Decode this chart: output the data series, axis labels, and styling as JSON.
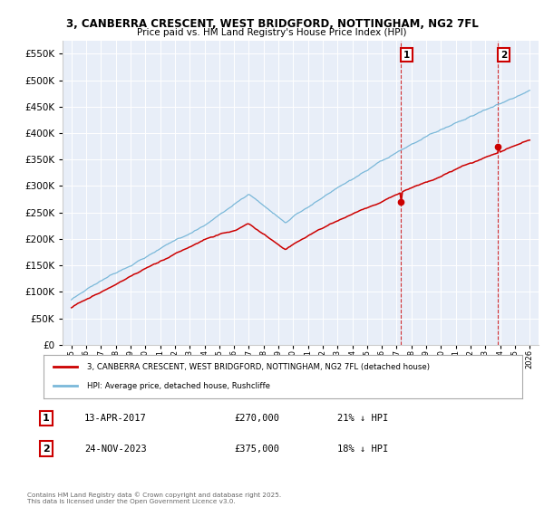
{
  "title1": "3, CANBERRA CRESCENT, WEST BRIDGFORD, NOTTINGHAM, NG2 7FL",
  "title2": "Price paid vs. HM Land Registry's House Price Index (HPI)",
  "ytick_vals": [
    0,
    50000,
    100000,
    150000,
    200000,
    250000,
    300000,
    350000,
    400000,
    450000,
    500000,
    550000
  ],
  "ylim": [
    0,
    575000
  ],
  "hpi_color": "#7ab8d9",
  "price_color": "#cc0000",
  "vline_color": "#cc0000",
  "background_color": "#e8eef8",
  "legend_entries": [
    "3, CANBERRA CRESCENT, WEST BRIDGFORD, NOTTINGHAM, NG2 7FL (detached house)",
    "HPI: Average price, detached house, Rushcliffe"
  ],
  "annotation1": {
    "label": "1",
    "date": "13-APR-2017",
    "price": "£270,000",
    "hpi_note": "21% ↓ HPI"
  },
  "annotation2": {
    "label": "2",
    "date": "24-NOV-2023",
    "price": "£375,000",
    "hpi_note": "18% ↓ HPI"
  },
  "footer": "Contains HM Land Registry data © Crown copyright and database right 2025.\nThis data is licensed under the Open Government Licence v3.0.",
  "sale1_year": 2017.29,
  "sale2_year": 2023.87,
  "sale1_price": 270000,
  "sale2_price": 375000
}
